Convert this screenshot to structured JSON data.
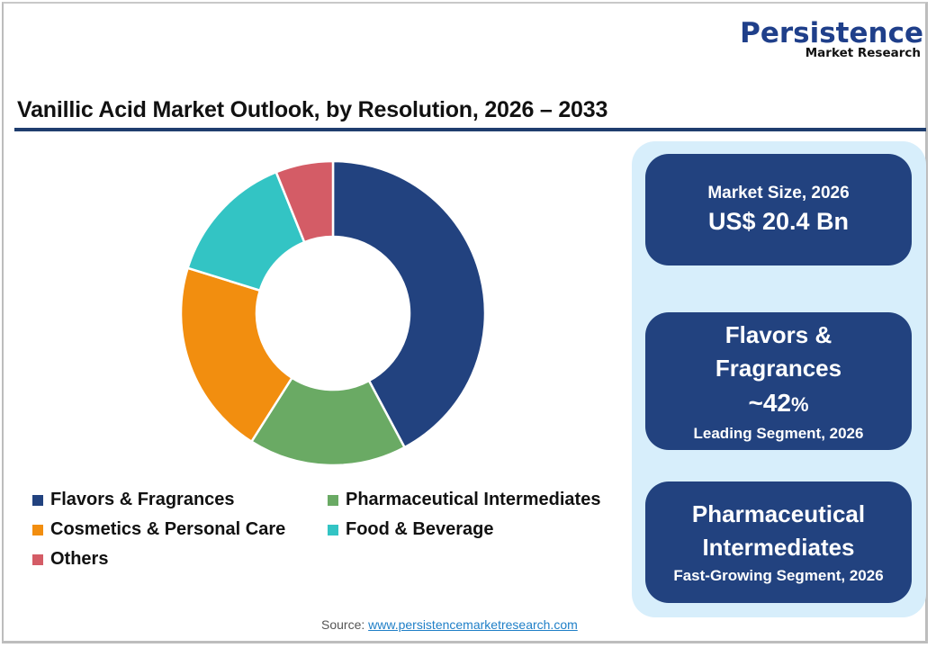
{
  "logo": {
    "name": "Persistence",
    "subtitle": "Market Research"
  },
  "title": "Vanillic Acid Market Outlook, by Resolution, 2026 – 2033",
  "colors": {
    "title_rule": "#1f3d6e",
    "panel_bg": "#d7eefb",
    "card_bg": "#22427f"
  },
  "chart_data": {
    "type": "pie",
    "variant": "donut",
    "title": "Vanillic Acid Market Outlook, by Resolution, 2026 – 2033",
    "categories": [
      "Flavors & Fragrances",
      "Pharmaceutical Intermediates",
      "Cosmetics & Personal Care",
      "Food & Beverage",
      "Others"
    ],
    "values": [
      42.2,
      16.8,
      20.8,
      14.1,
      6.1
    ],
    "unit": "%",
    "colors": [
      "#22427f",
      "#6aaa64",
      "#f28e0f",
      "#33c4c4",
      "#d45c66"
    ],
    "start_angle": "12 o'clock, clockwise",
    "legend_position": "bottom",
    "labels_on_slices": false
  },
  "legend": [
    {
      "label": "Flavors & Fragrances",
      "color": "#22427f"
    },
    {
      "label": "Pharmaceutical Intermediates",
      "color": "#6aaa64"
    },
    {
      "label": "Cosmetics & Personal Care",
      "color": "#f28e0f"
    },
    {
      "label": "Food & Beverage",
      "color": "#33c4c4"
    },
    {
      "label": "Others",
      "color": "#d45c66"
    }
  ],
  "cards": {
    "market_size": {
      "label": "Market Size, 2026",
      "value": "US$ 20.4 Bn"
    },
    "leading": {
      "segment_line1": "Flavors &",
      "segment_line2": "Fragrances",
      "value_prefix": "~42",
      "value_suffix": "%",
      "caption": "Leading Segment, 2026"
    },
    "fastest": {
      "segment_line1": "Pharmaceutical",
      "segment_line2": "Intermediates",
      "caption": "Fast-Growing Segment, 2026"
    }
  },
  "source": {
    "label": "Source: ",
    "link_text": "www.persistencemarketresearch.com"
  }
}
